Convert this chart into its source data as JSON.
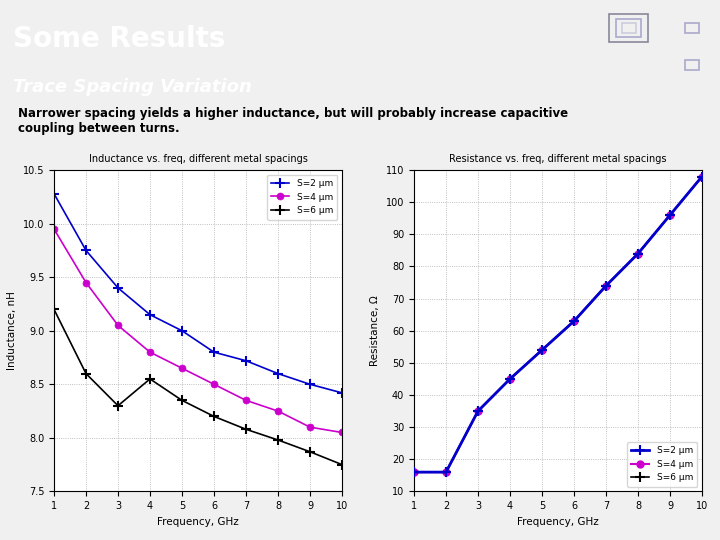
{
  "title": "Some Results",
  "subtitle": "Trace Spacing Variation",
  "body_text": "Narrower spacing yields a higher inductance, but will probably increase capacitive\ncoupling between turns.",
  "header_bg_color": "#6B6BBB",
  "header_text_color": "#ffffff",
  "subtitle_text_color": "#ffffff",
  "body_bg_color": "#f0f0f0",
  "accent_bar_color": "#7799BB",
  "freq": [
    1,
    2,
    3,
    4,
    5,
    6,
    7,
    8,
    9,
    10
  ],
  "inductance_S2": [
    10.28,
    9.75,
    9.4,
    9.15,
    9.0,
    8.8,
    8.72,
    8.6,
    8.5,
    8.42
  ],
  "inductance_S4": [
    9.95,
    9.45,
    9.05,
    8.8,
    8.65,
    8.5,
    8.35,
    8.25,
    8.1,
    8.05
  ],
  "inductance_S6": [
    9.2,
    8.6,
    8.3,
    8.55,
    8.35,
    8.2,
    8.08,
    7.98,
    7.87,
    7.75
  ],
  "resistance_S2": [
    16,
    16,
    35,
    45,
    54,
    63,
    74,
    84,
    96,
    108
  ],
  "resistance_S4": [
    16,
    16,
    35,
    45,
    54,
    63,
    74,
    84,
    96,
    108
  ],
  "resistance_S6": [
    16,
    16,
    35,
    45,
    54,
    63,
    74,
    84,
    96,
    108
  ],
  "ind_title": "Inductance vs. freq, different metal spacings",
  "res_title": "Resistance vs. freq, different metal spacings",
  "ind_ylabel": "Inductance, nH",
  "res_ylabel": "Resistance, Ω",
  "xlabel": "Frequency, GHz",
  "ylim_ind": [
    7.5,
    10.5
  ],
  "ylim_res": [
    10,
    110
  ],
  "color_S2": "#0000cc",
  "color_S4": "#cc00cc",
  "color_S6": "#000000",
  "legend_S2": "S=2 μm",
  "legend_S4": "S=4 μm",
  "legend_S6": "S=6 μm",
  "chip_image_color": "#555577"
}
